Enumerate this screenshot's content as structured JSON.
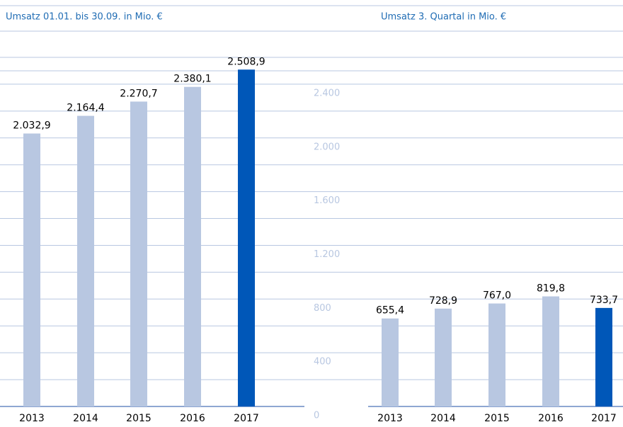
{
  "chart_data": [
    {
      "type": "bar",
      "title": "Umsatz 01.01. bis 30.09. in Mio. €",
      "categories": [
        "2013",
        "2014",
        "2015",
        "2016",
        "2017"
      ],
      "values": [
        2032.9,
        2164.4,
        2270.7,
        2380.1,
        2508.9
      ],
      "value_labels": [
        "2.032,9",
        "2.164,4",
        "2.270,7",
        "2.380,1",
        "2.508,9"
      ],
      "colors": [
        "#b8c7e1",
        "#b8c7e1",
        "#b8c7e1",
        "#b8c7e1",
        "#0057b8"
      ],
      "ylim": [
        0,
        2600
      ],
      "grid": true
    },
    {
      "type": "bar",
      "title": "Umsatz 3. Quartal in Mio. €",
      "categories": [
        "2013",
        "2014",
        "2015",
        "2016",
        "2017"
      ],
      "values": [
        655.4,
        728.9,
        767.0,
        819.8,
        733.7
      ],
      "value_labels": [
        "655,4",
        "728,9",
        "767,0",
        "819,8",
        "733,7"
      ],
      "colors": [
        "#b8c7e1",
        "#b8c7e1",
        "#b8c7e1",
        "#b8c7e1",
        "#0057b8"
      ],
      "ylim": [
        0,
        2600
      ],
      "yticks": [
        0,
        400,
        800,
        {
          "value": 1200,
          "label": "1.200"
        },
        {
          "value": 1600,
          "label": "1.600"
        },
        {
          "value": 2000,
          "label": "2.000"
        },
        {
          "value": 2400,
          "label": "2.400"
        }
      ],
      "grid": true
    }
  ]
}
